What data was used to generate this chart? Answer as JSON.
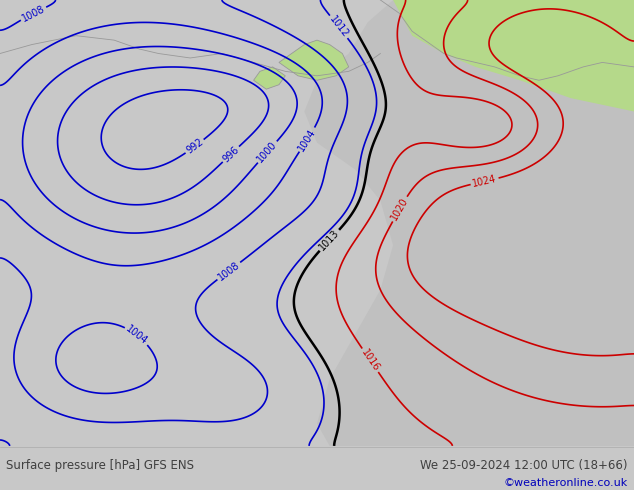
{
  "title_left": "Surface pressure [hPa] GFS ENS",
  "title_right": "We 25-09-2024 12:00 UTC (18+66)",
  "copyright": "©weatheronline.co.uk",
  "fig_width": 6.34,
  "fig_height": 4.9,
  "dpi": 100,
  "land_green": "#b5d98a",
  "sea_gray": "#c8c8c8",
  "bottom_bar_color": "#c8c8c8",
  "text_color": "#404040",
  "copyright_color": "#0000bb",
  "coast_color": "#999999",
  "blue_color": "#0000cc",
  "red_color": "#cc0000",
  "black_color": "#000000"
}
